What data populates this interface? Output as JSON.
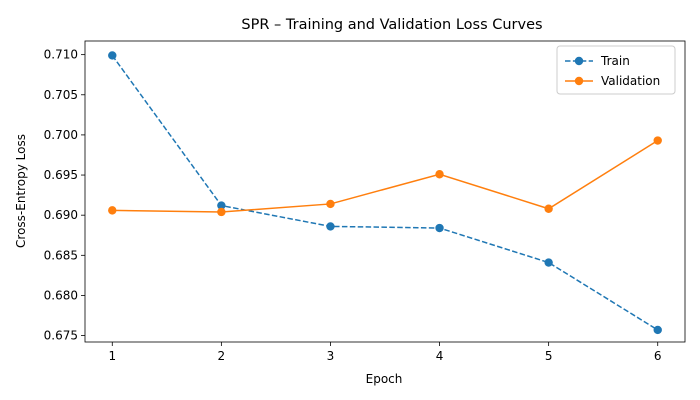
{
  "chart_data": {
    "type": "line",
    "title": "SPR – Training and Validation Loss Curves",
    "xlabel": "Epoch",
    "ylabel": "Cross-Entropy Loss",
    "x": [
      1,
      2,
      3,
      4,
      5,
      6
    ],
    "xticks": [
      "1",
      "2",
      "3",
      "4",
      "5",
      "6"
    ],
    "yticks": [
      "0.675",
      "0.680",
      "0.685",
      "0.690",
      "0.695",
      "0.700",
      "0.705",
      "0.710"
    ],
    "ylim": [
      0.6742,
      0.7117
    ],
    "xlim": [
      0.75,
      6.25
    ],
    "grid": false,
    "legend_position": "top-right",
    "series": [
      {
        "name": "Train",
        "values": [
          0.7099,
          0.6912,
          0.6886,
          0.6884,
          0.6841,
          0.6757
        ],
        "color": "#1f77b4",
        "style": "dashed",
        "marker": "circle"
      },
      {
        "name": "Validation",
        "values": [
          0.6906,
          0.6904,
          0.6914,
          0.6951,
          0.6908,
          0.6993
        ],
        "color": "#ff7f0e",
        "style": "solid",
        "marker": "circle"
      }
    ]
  }
}
